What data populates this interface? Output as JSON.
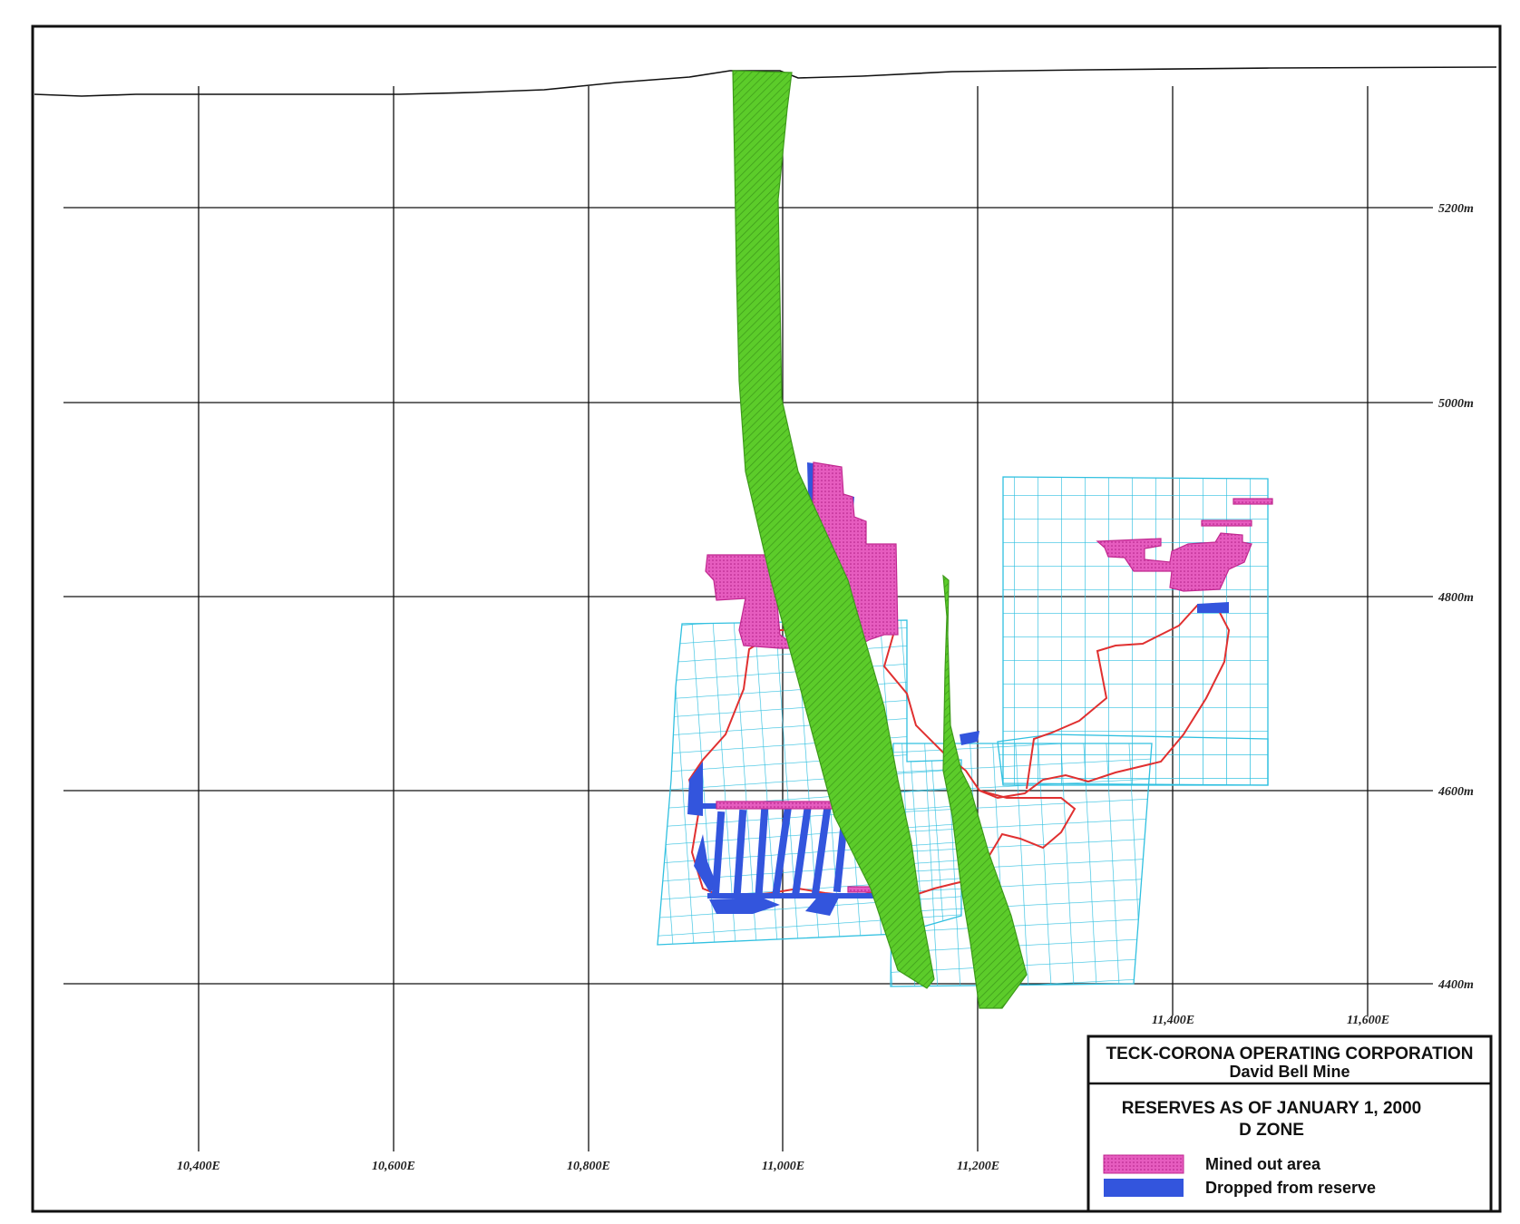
{
  "map": {
    "easting_labels": [
      "10,400E",
      "10,600E",
      "10,800E",
      "11,000E",
      "11,200E",
      "11,400E",
      "11,600E"
    ],
    "elevation_labels": [
      "5200m",
      "5000m",
      "4800m",
      "4600m",
      "4400m"
    ]
  },
  "title_block": {
    "company": "TECK-CORONA OPERATING CORPORATION",
    "mine": "David Bell Mine",
    "heading": "RESERVES AS OF JANUARY 1, 2000",
    "zone": "D ZONE"
  },
  "legend": [
    {
      "label": "Mined out area",
      "color": "#e040b0"
    },
    {
      "label": "Dropped from reserve",
      "color": "#3355dd"
    }
  ],
  "colors": {
    "dyke": "#5ccc2a",
    "grid": "#30c0e0",
    "outline": "#e03030",
    "mined": "#e040b0",
    "dropped": "#3355dd"
  }
}
